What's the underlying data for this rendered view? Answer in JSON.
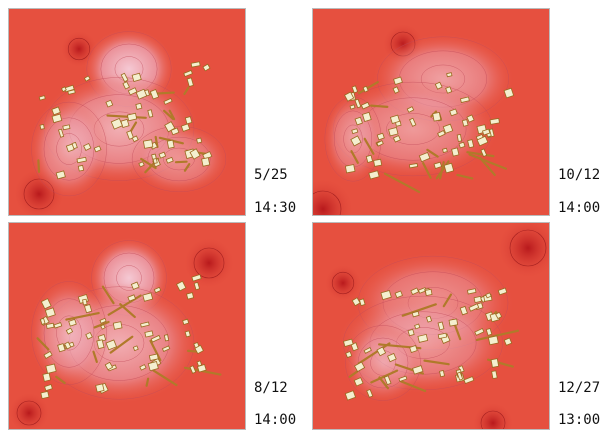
{
  "panels": [
    {
      "date": "5/25",
      "time": "14:30"
    },
    {
      "date": "10/12",
      "time": "14:00"
    },
    {
      "date": "8/12",
      "time": "14:00"
    },
    {
      "date": "12/27",
      "time": "13:00"
    }
  ]
}
